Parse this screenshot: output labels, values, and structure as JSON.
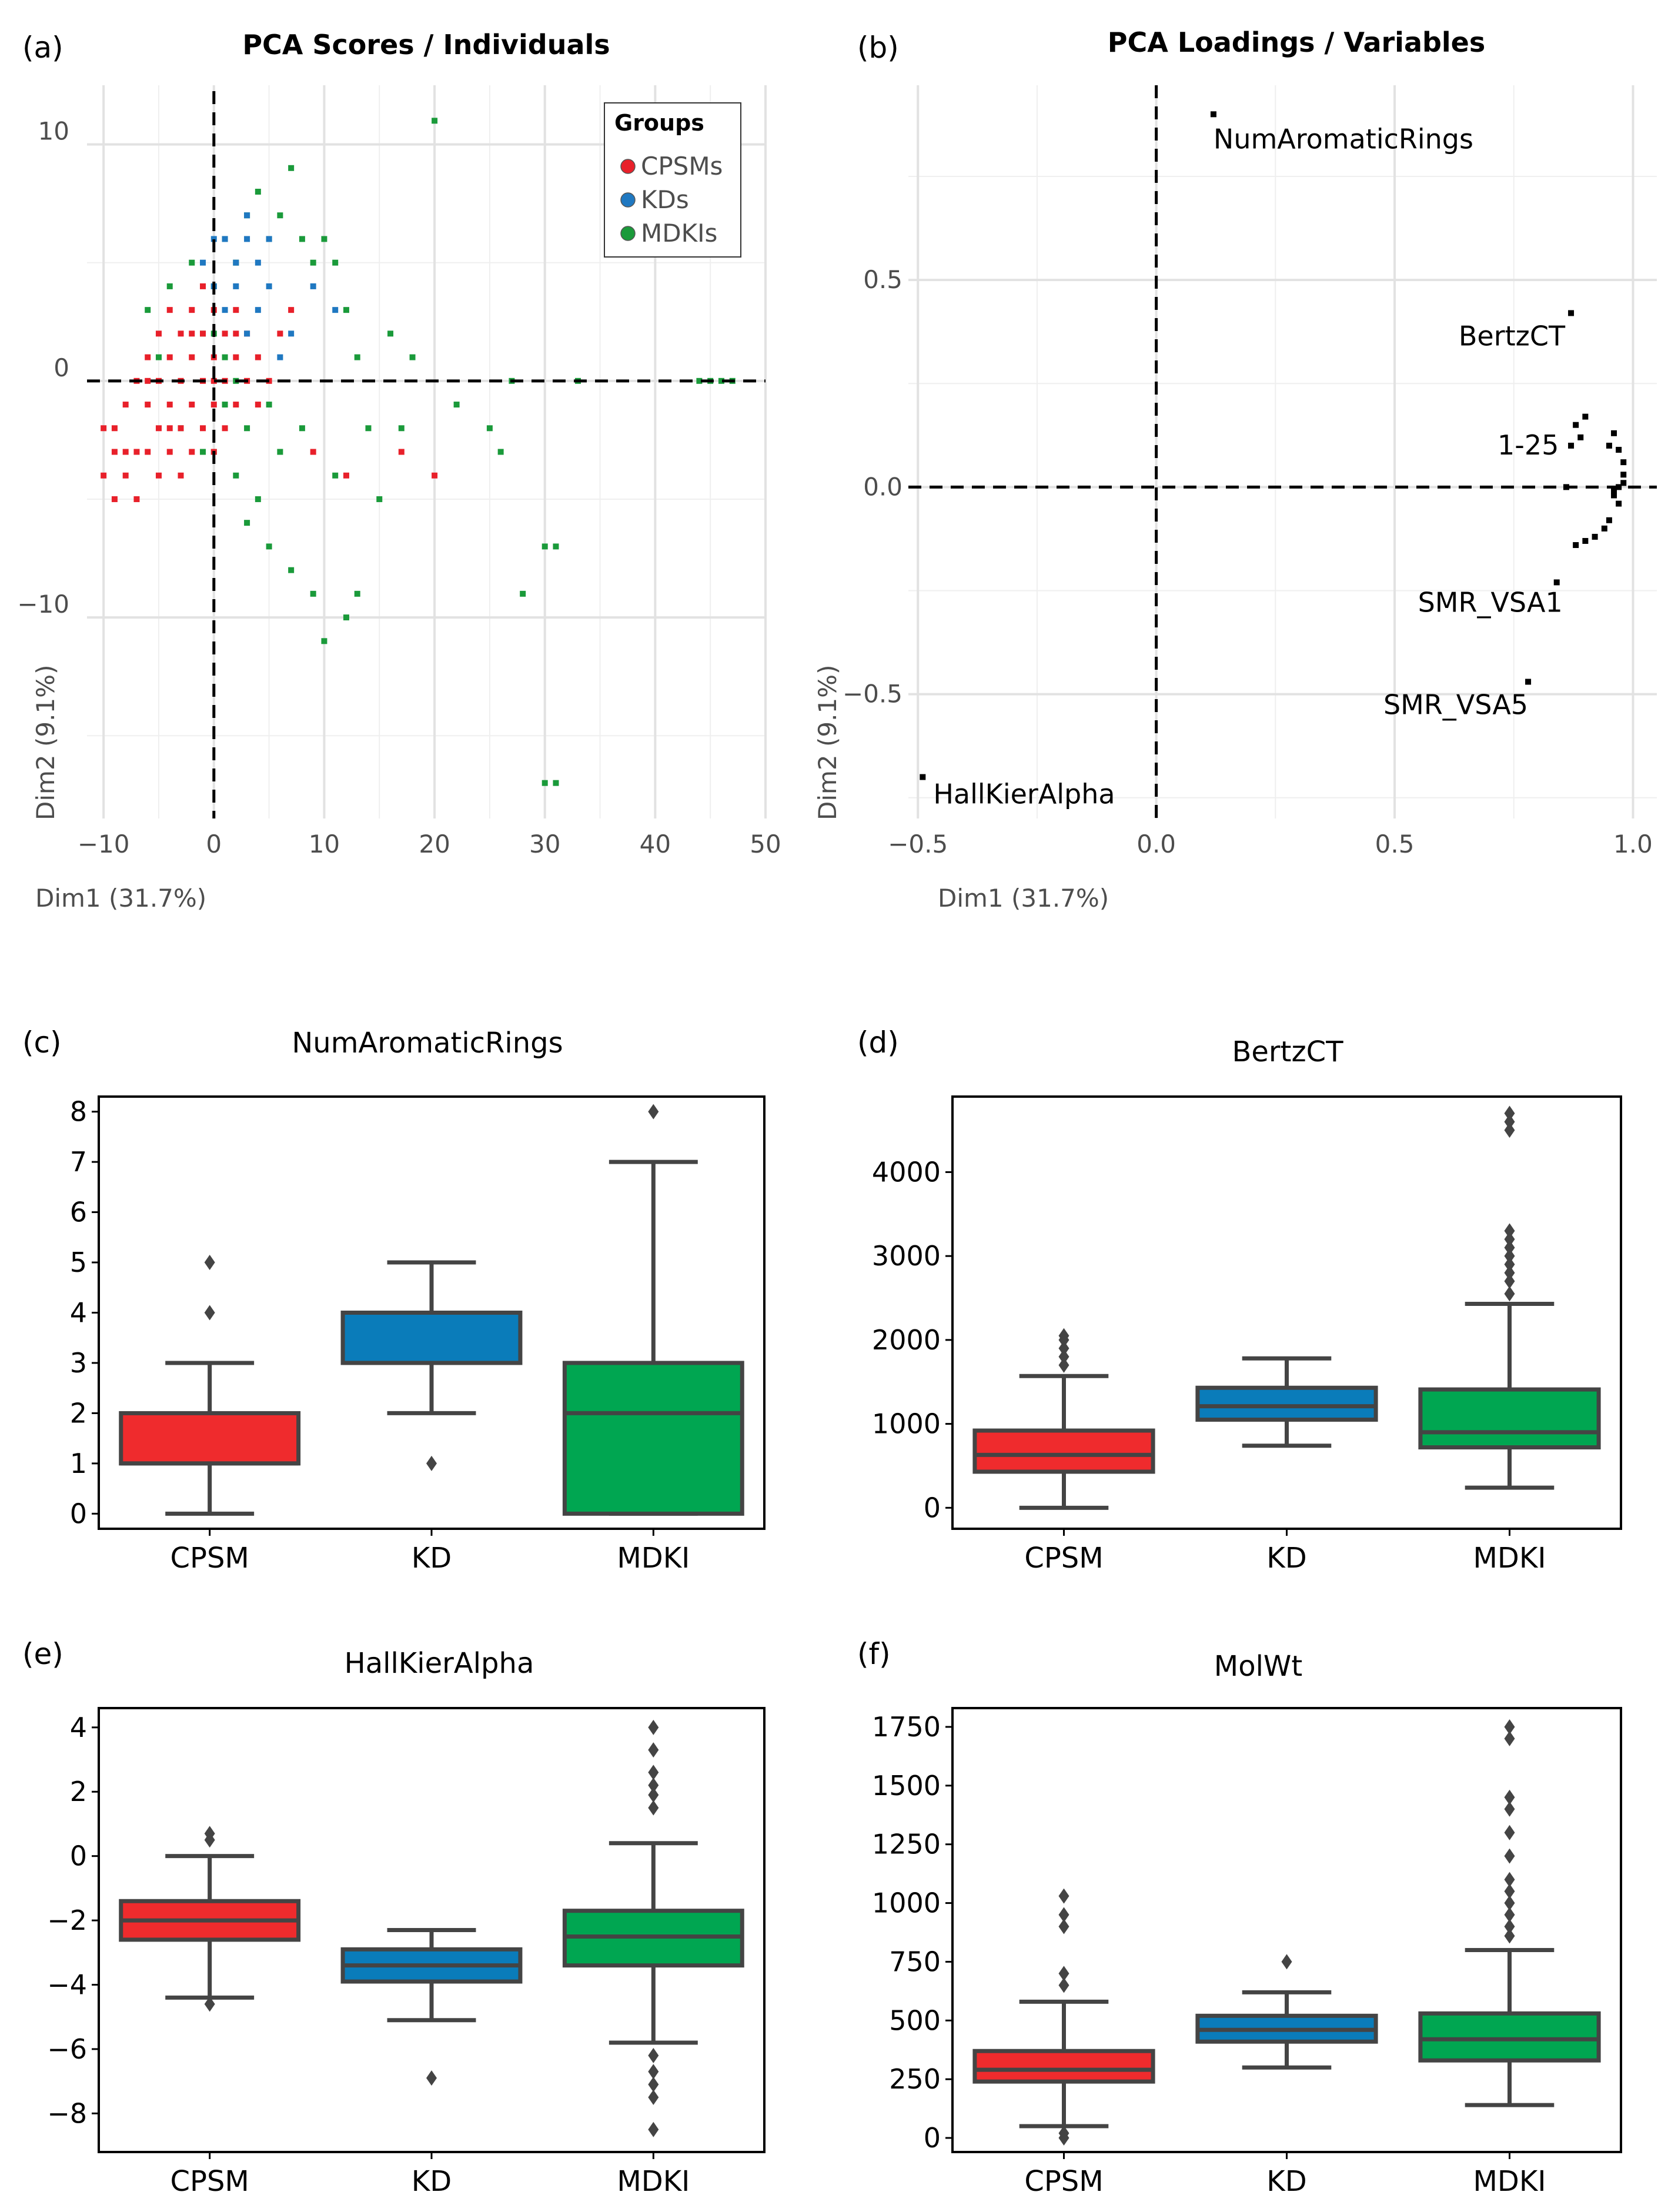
{
  "colors": {
    "cpsm": "#e8202a",
    "kd": "#1f78c1",
    "mdki": "#1a9a3a",
    "box_cpsm": "#ef2b2d",
    "box_kd": "#0a7cba",
    "box_mdki": "#00a651"
  },
  "chart_data": [
    {
      "panel": "(a)",
      "type": "scatter",
      "title": "PCA Scores / Individuals",
      "xlabel": "Dim1 (31.7%)",
      "ylabel": "Dim2 (9.1%)",
      "xlim": [
        -11.5,
        50
      ],
      "ylim": [
        -18.5,
        12.5
      ],
      "xticks": [
        -10,
        0,
        10,
        20,
        30,
        40,
        50
      ],
      "yticks": [
        -10,
        0,
        10
      ],
      "legend": {
        "title": "Groups",
        "position": "top-right",
        "entries": [
          "CPSMs",
          "KDs",
          "MDKIs"
        ]
      },
      "series": [
        {
          "name": "CPSMs",
          "points": [
            [
              -10,
              -4
            ],
            [
              -9,
              -3
            ],
            [
              -9,
              -2
            ],
            [
              -8,
              -4
            ],
            [
              -8,
              -1
            ],
            [
              -7,
              -3
            ],
            [
              -7,
              -5
            ],
            [
              -7,
              0
            ],
            [
              -6,
              -1
            ],
            [
              -6,
              -3
            ],
            [
              -6,
              1
            ],
            [
              -5,
              -2
            ],
            [
              -5,
              -4
            ],
            [
              -5,
              0
            ],
            [
              -5,
              2
            ],
            [
              -4,
              -3
            ],
            [
              -4,
              -1
            ],
            [
              -4,
              1
            ],
            [
              -4,
              3
            ],
            [
              -3,
              -2
            ],
            [
              -3,
              0
            ],
            [
              -3,
              2
            ],
            [
              -3,
              -4
            ],
            [
              -2,
              -1
            ],
            [
              -2,
              1
            ],
            [
              -2,
              3
            ],
            [
              -2,
              -3
            ],
            [
              -1,
              0
            ],
            [
              -1,
              2
            ],
            [
              -1,
              -2
            ],
            [
              -1,
              4
            ],
            [
              0,
              -1
            ],
            [
              0,
              1
            ],
            [
              0,
              3
            ],
            [
              0,
              -3
            ],
            [
              1,
              0
            ],
            [
              1,
              2
            ],
            [
              1,
              -2
            ],
            [
              2,
              1
            ],
            [
              2,
              3
            ],
            [
              2,
              -1
            ],
            [
              3,
              0
            ],
            [
              3,
              2
            ],
            [
              4,
              -1
            ],
            [
              4,
              1
            ],
            [
              5,
              0
            ],
            [
              6,
              2
            ],
            [
              7,
              3
            ],
            [
              -8,
              -3
            ],
            [
              -6,
              0
            ],
            [
              -4,
              -2
            ],
            [
              -2,
              2
            ],
            [
              0,
              0
            ],
            [
              2,
              2
            ],
            [
              9,
              -3
            ],
            [
              12,
              -4
            ],
            [
              17,
              -3
            ],
            [
              20,
              -4
            ],
            [
              -9,
              -5
            ],
            [
              -10,
              -2
            ]
          ]
        },
        {
          "name": "KDs",
          "points": [
            [
              -1,
              5
            ],
            [
              0,
              6
            ],
            [
              1,
              6
            ],
            [
              2,
              4
            ],
            [
              3,
              6
            ],
            [
              3,
              2
            ],
            [
              4,
              5
            ],
            [
              4,
              3
            ],
            [
              5,
              4
            ],
            [
              6,
              1
            ],
            [
              5,
              6
            ],
            [
              3,
              7
            ],
            [
              2,
              5
            ],
            [
              1,
              3
            ],
            [
              7,
              2
            ],
            [
              11,
              3
            ],
            [
              9,
              4
            ],
            [
              0,
              4
            ]
          ]
        },
        {
          "name": "MDKIs",
          "points": [
            [
              -6,
              3
            ],
            [
              -5,
              1
            ],
            [
              -4,
              4
            ],
            [
              -3,
              -2
            ],
            [
              -2,
              5
            ],
            [
              -1,
              2
            ],
            [
              0,
              -3
            ],
            [
              0,
              4
            ],
            [
              1,
              -1
            ],
            [
              1,
              6
            ],
            [
              2,
              -4
            ],
            [
              2,
              5
            ],
            [
              3,
              -6
            ],
            [
              3,
              7
            ],
            [
              4,
              -5
            ],
            [
              4,
              8
            ],
            [
              5,
              -7
            ],
            [
              5,
              6
            ],
            [
              6,
              -3
            ],
            [
              6,
              7
            ],
            [
              7,
              -8
            ],
            [
              7,
              9
            ],
            [
              8,
              -2
            ],
            [
              8,
              6
            ],
            [
              9,
              5
            ],
            [
              10,
              6
            ],
            [
              10,
              -11
            ],
            [
              11,
              5
            ],
            [
              12,
              -10
            ],
            [
              12,
              3
            ],
            [
              13,
              -9
            ],
            [
              14,
              -2
            ],
            [
              15,
              -5
            ],
            [
              17,
              -2
            ],
            [
              18,
              1
            ],
            [
              20,
              11
            ],
            [
              22,
              -1
            ],
            [
              25,
              -2
            ],
            [
              26,
              -3
            ],
            [
              27,
              0
            ],
            [
              28,
              -9
            ],
            [
              30,
              -7
            ],
            [
              31,
              -7
            ],
            [
              33,
              0
            ],
            [
              30,
              -17
            ],
            [
              31,
              -17
            ],
            [
              44,
              0
            ],
            [
              45,
              0
            ],
            [
              46,
              0
            ],
            [
              47,
              0
            ],
            [
              16,
              2
            ],
            [
              13,
              1
            ],
            [
              9,
              -9
            ],
            [
              11,
              -4
            ],
            [
              5,
              -1
            ],
            [
              0,
              2
            ],
            [
              -1,
              -3
            ],
            [
              2,
              0
            ],
            [
              3,
              -2
            ],
            [
              1,
              1
            ]
          ]
        }
      ]
    },
    {
      "panel": "(b)",
      "type": "scatter",
      "title": "PCA Loadings / Variables",
      "xlabel": "Dim1 (31.7%)",
      "ylabel": "Dim2 (9.1%)",
      "xlim": [
        -0.52,
        1.05
      ],
      "ylim": [
        -0.8,
        0.97
      ],
      "xticks": [
        -0.5,
        0.0,
        0.5,
        1.0
      ],
      "yticks": [
        -0.5,
        0.0,
        0.5
      ],
      "labels": [
        {
          "text": "NumAromaticRings",
          "x": 0.12,
          "y": 0.9
        },
        {
          "text": "BertzCT",
          "x": 0.87,
          "y": 0.42
        },
        {
          "text": "1-25",
          "x": 0.9,
          "y": 0.05
        },
        {
          "text": "SMR_VSA1",
          "x": 0.84,
          "y": -0.23
        },
        {
          "text": "SMR_VSA5",
          "x": 0.78,
          "y": -0.47
        },
        {
          "text": "HallKierAlpha",
          "x": -0.49,
          "y": -0.7
        }
      ],
      "points": [
        [
          0.12,
          0.9
        ],
        [
          0.87,
          0.42
        ],
        [
          0.84,
          -0.23
        ],
        [
          0.78,
          -0.47
        ],
        [
          -0.49,
          -0.7
        ],
        [
          0.87,
          0.1
        ],
        [
          0.88,
          0.15
        ],
        [
          0.9,
          0.17
        ],
        [
          0.89,
          0.12
        ],
        [
          0.86,
          0.0
        ],
        [
          0.96,
          0.13
        ],
        [
          0.97,
          0.09
        ],
        [
          0.98,
          0.06
        ],
        [
          0.98,
          0.03
        ],
        [
          0.97,
          0.0
        ],
        [
          0.96,
          -0.02
        ],
        [
          0.97,
          -0.04
        ],
        [
          0.95,
          -0.08
        ],
        [
          0.94,
          -0.1
        ],
        [
          0.92,
          -0.12
        ],
        [
          0.9,
          -0.13
        ],
        [
          0.88,
          -0.14
        ],
        [
          0.95,
          0.1
        ],
        [
          0.98,
          0.01
        ],
        [
          0.96,
          -0.01
        ]
      ]
    },
    {
      "panel": "(c)",
      "type": "box",
      "title": "NumAromaticRings",
      "categories": [
        "CPSM",
        "KD",
        "MDKI"
      ],
      "ylim": [
        -0.3,
        8.3
      ],
      "yticks": [
        0,
        1,
        2,
        3,
        4,
        5,
        6,
        7,
        8
      ],
      "boxes": [
        {
          "q1": 1,
          "median": 1,
          "q3": 2,
          "wlo": 0,
          "whi": 3,
          "outliers": [
            4,
            5
          ]
        },
        {
          "q1": 3,
          "median": 3,
          "q3": 4,
          "wlo": 2,
          "whi": 5,
          "outliers": [
            1
          ]
        },
        {
          "q1": 0,
          "median": 2,
          "q3": 3,
          "wlo": 0,
          "whi": 7,
          "outliers": [
            8
          ]
        }
      ]
    },
    {
      "panel": "(d)",
      "type": "box",
      "title": "BertzCT",
      "categories": [
        "CPSM",
        "KD",
        "MDKI"
      ],
      "ylim": [
        -250,
        4900
      ],
      "yticks": [
        0,
        1000,
        2000,
        3000,
        4000
      ],
      "boxes": [
        {
          "q1": 430,
          "median": 630,
          "q3": 920,
          "wlo": 0,
          "whi": 1570,
          "outliers": [
            1700,
            1800,
            1900,
            2000,
            2050
          ]
        },
        {
          "q1": 1050,
          "median": 1210,
          "q3": 1430,
          "wlo": 740,
          "whi": 1780,
          "outliers": []
        },
        {
          "q1": 720,
          "median": 900,
          "q3": 1410,
          "wlo": 240,
          "whi": 2430,
          "outliers": [
            2550,
            2700,
            2800,
            2900,
            3000,
            3100,
            3200,
            3300,
            4500,
            4600,
            4700
          ]
        }
      ]
    },
    {
      "panel": "(e)",
      "type": "box",
      "title": "HallKierAlpha",
      "categories": [
        "CPSM",
        "KD",
        "MDKI"
      ],
      "ylim": [
        -9.2,
        4.6
      ],
      "yticks": [
        4,
        2,
        0,
        -2,
        -4,
        -6,
        -8
      ],
      "boxes": [
        {
          "q1": -2.6,
          "median": -2.0,
          "q3": -1.4,
          "wlo": -4.4,
          "whi": 0.0,
          "outliers": [
            0.5,
            0.7,
            -4.6
          ]
        },
        {
          "q1": -3.9,
          "median": -3.4,
          "q3": -2.9,
          "wlo": -5.1,
          "whi": -2.3,
          "outliers": [
            -6.9
          ]
        },
        {
          "q1": -3.4,
          "median": -2.5,
          "q3": -1.7,
          "wlo": -5.8,
          "whi": 0.4,
          "outliers": [
            1.5,
            1.9,
            2.2,
            2.6,
            3.3,
            4.0,
            -6.2,
            -6.7,
            -7.1,
            -7.5,
            -8.5
          ]
        }
      ]
    },
    {
      "panel": "(f)",
      "type": "box",
      "title": "MolWt",
      "categories": [
        "CPSM",
        "KD",
        "MDKI"
      ],
      "ylim": [
        -60,
        1830
      ],
      "yticks": [
        0,
        250,
        500,
        750,
        1000,
        1250,
        1500,
        1750
      ],
      "boxes": [
        {
          "q1": 240,
          "median": 290,
          "q3": 370,
          "wlo": 50,
          "whi": 580,
          "outliers": [
            0,
            20,
            650,
            700,
            900,
            950,
            1030
          ]
        },
        {
          "q1": 410,
          "median": 460,
          "q3": 520,
          "wlo": 300,
          "whi": 620,
          "outliers": [
            750
          ]
        },
        {
          "q1": 330,
          "median": 420,
          "q3": 530,
          "wlo": 140,
          "whi": 800,
          "outliers": [
            860,
            900,
            950,
            1000,
            1050,
            1100,
            1200,
            1300,
            1400,
            1450,
            1700,
            1750
          ]
        }
      ]
    }
  ]
}
